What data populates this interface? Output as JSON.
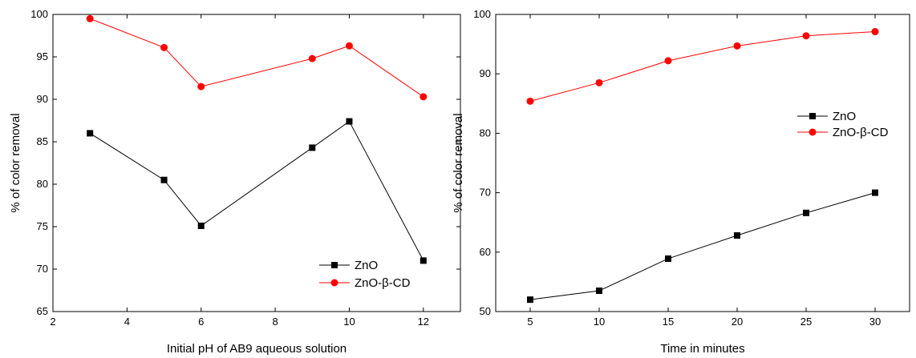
{
  "chart_data": [
    {
      "type": "line",
      "title": "",
      "xlabel": "Initial pH of AB9 aqueous solution",
      "ylabel": "% of color removal",
      "xlim": [
        2,
        13
      ],
      "ylim": [
        65,
        100
      ],
      "xticks": [
        2,
        4,
        6,
        8,
        10,
        12
      ],
      "yticks": [
        65,
        70,
        75,
        80,
        85,
        90,
        95,
        100
      ],
      "legend_position": "bottom-right",
      "grid": false,
      "series": [
        {
          "name": "ZnO",
          "color": "#000000",
          "marker": "square",
          "x": [
            3,
            5,
            6,
            9,
            10,
            12
          ],
          "y": [
            86.0,
            80.5,
            75.1,
            84.3,
            87.4,
            71.0
          ]
        },
        {
          "name": "ZnO-β-CD",
          "color": "#ff0000",
          "marker": "circle",
          "x": [
            3,
            5,
            6,
            9,
            10,
            12
          ],
          "y": [
            99.5,
            96.1,
            91.5,
            94.8,
            96.3,
            90.3
          ]
        }
      ]
    },
    {
      "type": "line",
      "title": "",
      "xlabel": "Time in minutes",
      "ylabel": "% of color removal",
      "xlim": [
        2.5,
        32.5
      ],
      "ylim": [
        50,
        100
      ],
      "xticks": [
        5,
        10,
        15,
        20,
        25,
        30
      ],
      "yticks": [
        50,
        60,
        70,
        80,
        90,
        100
      ],
      "legend_position": "middle-right",
      "grid": false,
      "series": [
        {
          "name": "ZnO",
          "color": "#000000",
          "marker": "square",
          "x": [
            5,
            10,
            15,
            20,
            25,
            30
          ],
          "y": [
            52.0,
            53.5,
            58.9,
            62.8,
            66.6,
            70.0
          ]
        },
        {
          "name": "ZnO-β-CD",
          "color": "#ff0000",
          "marker": "circle",
          "x": [
            5,
            10,
            15,
            20,
            25,
            30
          ],
          "y": [
            85.4,
            88.5,
            92.2,
            94.7,
            96.4,
            97.1
          ]
        }
      ]
    }
  ]
}
